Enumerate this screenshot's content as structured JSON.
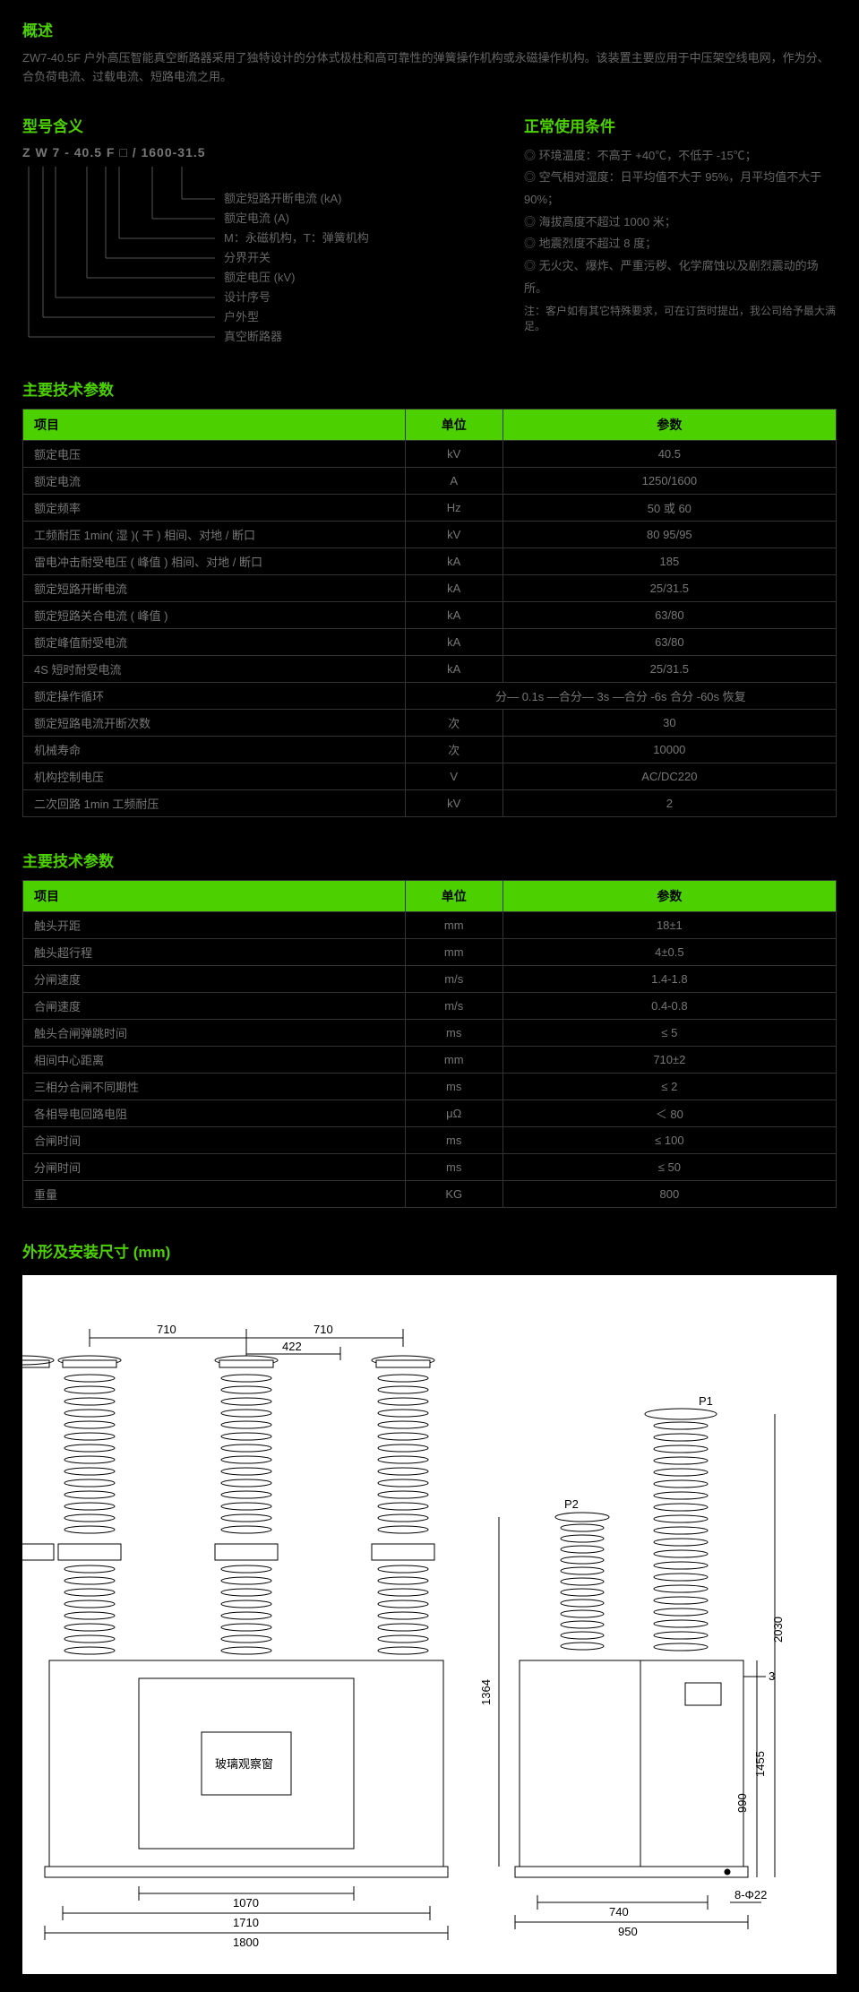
{
  "overview": {
    "title": "概述",
    "text": "ZW7-40.5F 户外高压智能真空断路器采用了独特设计的分体式极柱和高可靠性的弹簧操作机构或永磁操作机构。该装置主要应用于中压架空线电网，作为分、合负荷电流、过载电流、短路电流之用。"
  },
  "modelMeaning": {
    "title": "型号含义",
    "code": "Z W 7 - 40.5 F □  / 1600-31.5",
    "labels": [
      "额定短路开断电流 (kA)",
      "额定电流 (A)",
      "M：永磁机构，T：弹簧机构",
      "分界开关",
      "额定电压 (kV)",
      "设计序号",
      "户外型",
      "真空断路器"
    ]
  },
  "conditions": {
    "title": "正常使用条件",
    "items": [
      "环境温度：不高于 +40℃，不低于 -15℃；",
      "空气相对湿度：日平均值不大于 95%，月平均值不大于 90%；",
      "海拔高度不超过 1000 米；",
      "地震烈度不超过 8 度；",
      "无火灾、爆炸、严重污秽、化学腐蚀以及剧烈震动的场所。"
    ],
    "note": "注：客户如有其它特殊要求，可在订货时提出，我公司给予最大满足。"
  },
  "table1": {
    "title": "主要技术参数",
    "headers": [
      "项目",
      "单位",
      "参数"
    ],
    "rows": [
      [
        "额定电压",
        "kV",
        "40.5"
      ],
      [
        "额定电流",
        "A",
        "1250/1600"
      ],
      [
        "额定频率",
        "Hz",
        "50 或 60"
      ],
      [
        "工频耐压 1min( 湿 )( 干 ) 相间、对地 / 断口",
        "kV",
        "80 95/95"
      ],
      [
        "雷电冲击耐受电压 ( 峰值 ) 相间、对地 / 断口",
        "kA",
        "185"
      ],
      [
        "额定短路开断电流",
        "kA",
        "25/31.5"
      ],
      [
        "额定短路关合电流 ( 峰值 )",
        "kA",
        "63/80"
      ],
      [
        "额定峰值耐受电流",
        "kA",
        "63/80"
      ],
      [
        "4S 短时耐受电流",
        "kA",
        "25/31.5"
      ],
      [
        "额定操作循环",
        "",
        "分— 0.1s —合分— 3s —合分 -6s 合分 -60s 恢复"
      ],
      [
        "额定短路电流开断次数",
        "次",
        "30"
      ],
      [
        "机械寿命",
        "次",
        "10000"
      ],
      [
        "机构控制电压",
        "V",
        "AC/DC220"
      ],
      [
        "二次回路 1min 工频耐压",
        "kV",
        "2"
      ]
    ]
  },
  "table2": {
    "title": "主要技术参数",
    "headers": [
      "项目",
      "单位",
      "参数"
    ],
    "rows": [
      [
        "触头开距",
        "mm",
        "18±1"
      ],
      [
        "触头超行程",
        "mm",
        "4±0.5"
      ],
      [
        "分闸速度",
        "m/s",
        "1.4-1.8"
      ],
      [
        "合闸速度",
        "m/s",
        "0.4-0.8"
      ],
      [
        "触头合闸弹跳时间",
        "ms",
        "≤ 5"
      ],
      [
        "相间中心距离",
        "mm",
        "710±2"
      ],
      [
        "三相分合闸不同期性",
        "ms",
        "≤ 2"
      ],
      [
        "各相导电回路电阻",
        "μΩ",
        "＜ 80"
      ],
      [
        "合闸时间",
        "ms",
        "≤ 100"
      ],
      [
        "分闸时间",
        "ms",
        "≤ 50"
      ],
      [
        "重量",
        "KG",
        "800"
      ]
    ]
  },
  "dimensions": {
    "title": "外形及安装尺寸 (mm)",
    "frontLabels": {
      "d710a": "710",
      "d710b": "710",
      "d422": "422",
      "glass": "玻璃观察窗",
      "d1070": "1070",
      "d1710": "1710",
      "d1800": "1800"
    },
    "sideLabels": {
      "p1": "P1",
      "p2": "P2",
      "d3": "3",
      "d1364": "1364",
      "d990": "990",
      "d1455": "1455",
      "d2030": "2030",
      "d740": "740",
      "d950": "950",
      "d8phi22": "8-Φ22"
    }
  }
}
